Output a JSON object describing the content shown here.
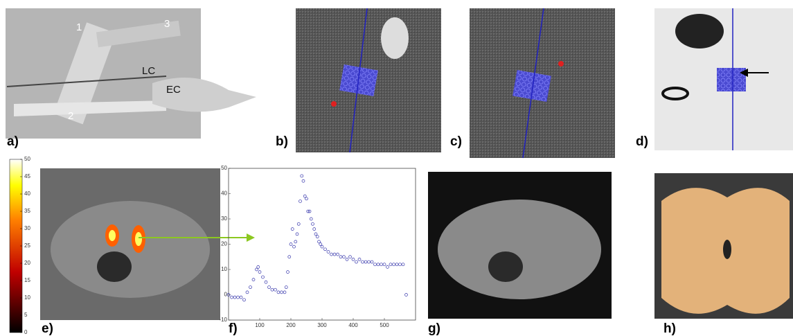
{
  "panels": [
    {
      "label": "a)"
    },
    {
      "label": "b)"
    },
    {
      "label": "c)"
    },
    {
      "label": "d)"
    },
    {
      "label": "e)"
    },
    {
      "label": "f)"
    },
    {
      "label": "g)"
    },
    {
      "label": "h)"
    }
  ],
  "photo_annotations": [
    "1",
    "2",
    "3",
    "LC",
    "EC"
  ],
  "colorbar": {
    "ticks": [
      0,
      5,
      10,
      15,
      20,
      25,
      30,
      35,
      40,
      45,
      50
    ],
    "lim": [
      0,
      50
    ]
  },
  "chart_data": {
    "type": "scatter",
    "color": "#3333aa",
    "x": [
      0,
      10,
      20,
      30,
      40,
      50,
      60,
      70,
      80,
      90,
      95,
      100,
      110,
      120,
      130,
      140,
      150,
      160,
      170,
      180,
      185,
      190,
      195,
      200,
      205,
      210,
      215,
      220,
      225,
      230,
      235,
      240,
      245,
      250,
      255,
      260,
      265,
      270,
      275,
      280,
      285,
      290,
      295,
      300,
      310,
      320,
      330,
      340,
      350,
      360,
      370,
      380,
      390,
      400,
      410,
      420,
      430,
      440,
      450,
      460,
      470,
      480,
      490,
      500,
      510,
      520,
      530,
      540,
      550,
      560,
      570
    ],
    "values": [
      0,
      -1,
      -1,
      -1,
      -1,
      -2,
      1,
      3,
      6,
      10,
      11,
      9,
      7,
      5,
      3,
      2,
      2,
      1,
      1,
      1,
      3,
      9,
      15,
      20,
      26,
      19,
      21,
      24,
      28,
      37,
      47,
      45,
      39,
      38,
      33,
      33,
      30,
      28,
      26,
      24,
      23,
      21,
      20,
      19,
      18,
      17,
      16,
      16,
      16,
      15,
      15,
      14,
      15,
      14,
      13,
      14,
      13,
      13,
      13,
      13,
      12,
      12,
      12,
      12,
      11,
      12,
      12,
      12,
      12,
      12,
      0
    ],
    "xlim": [
      0,
      600
    ],
    "ylim": [
      -10,
      50
    ],
    "xticks": [
      100,
      200,
      300,
      400,
      500
    ],
    "yticks": [
      -10,
      0,
      10,
      20,
      30,
      40,
      50
    ]
  }
}
